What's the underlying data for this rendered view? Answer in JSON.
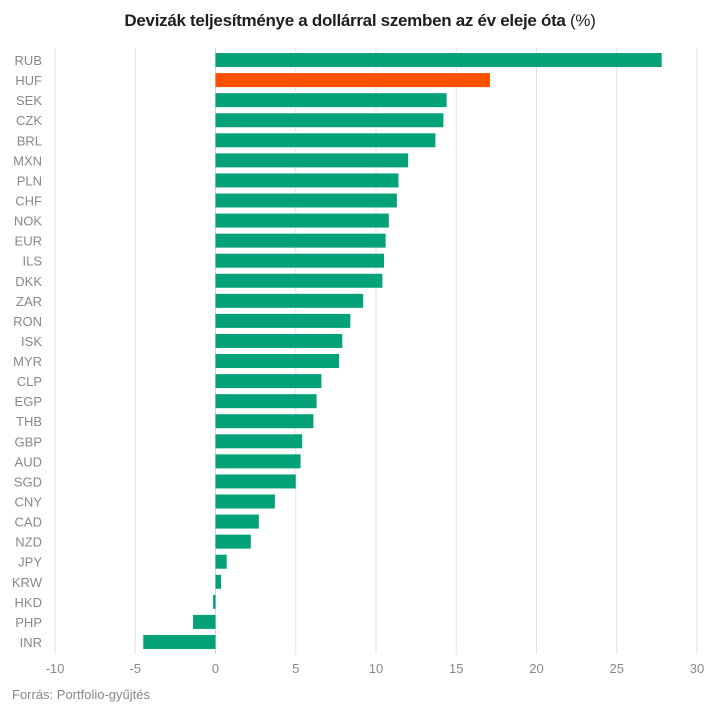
{
  "chart_data": {
    "type": "bar",
    "orientation": "horizontal",
    "title": "Devizák teljesítménye a dollárral szemben az év eleje óta",
    "title_unit": "(%)",
    "xlabel": "",
    "ylabel": "",
    "xlim": [
      -10,
      30
    ],
    "xticks": [
      -10,
      -5,
      0,
      5,
      10,
      15,
      20,
      25,
      30
    ],
    "grid": true,
    "legend": "none",
    "default_color": "#05a27a",
    "highlight_color": "#ff5100",
    "highlight_category": "HUF",
    "categories": [
      "RUB",
      "HUF",
      "SEK",
      "CZK",
      "BRL",
      "MXN",
      "PLN",
      "CHF",
      "NOK",
      "EUR",
      "ILS",
      "DKK",
      "ZAR",
      "RON",
      "ISK",
      "MYR",
      "CLP",
      "EGP",
      "THB",
      "GBP",
      "AUD",
      "SGD",
      "CNY",
      "CAD",
      "NZD",
      "JPY",
      "KRW",
      "HKD",
      "PHP",
      "INR"
    ],
    "values": [
      27.8,
      17.1,
      14.4,
      14.2,
      13.7,
      12.0,
      11.4,
      11.3,
      10.8,
      10.6,
      10.5,
      10.4,
      9.2,
      8.4,
      7.9,
      7.7,
      6.6,
      6.3,
      6.1,
      5.4,
      5.3,
      5.0,
      3.7,
      2.7,
      2.2,
      0.7,
      0.35,
      -0.15,
      -1.4,
      -4.5
    ]
  },
  "source": "Forrás: Portfolio-gyűjtés"
}
